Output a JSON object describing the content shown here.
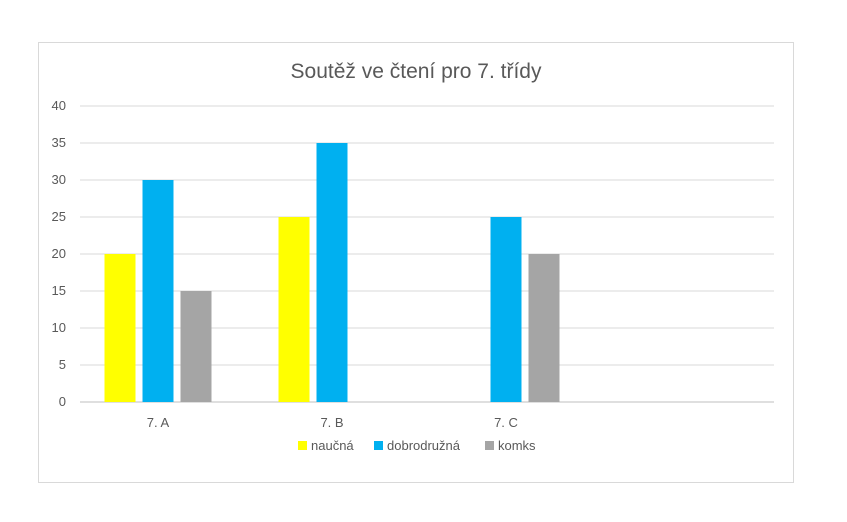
{
  "chart_data": {
    "type": "bar",
    "title": "Soutěž ve čtení pro 7. třídy",
    "xlabel": "",
    "ylabel": "",
    "categories": [
      "7. A",
      "7. B",
      "7. C"
    ],
    "series": [
      {
        "name": "naučná",
        "color": "#ffff00",
        "values": [
          20,
          25,
          null
        ]
      },
      {
        "name": "dobrodružná",
        "color": "#00b0f0",
        "values": [
          30,
          35,
          25
        ]
      },
      {
        "name": "komks",
        "color": "#a5a5a5",
        "values": [
          15,
          null,
          20
        ]
      }
    ],
    "ylim": [
      0,
      40
    ],
    "yticks": [
      0,
      5,
      10,
      15,
      20,
      25,
      30,
      35,
      40
    ],
    "grid": true,
    "legend_position": "bottom"
  }
}
